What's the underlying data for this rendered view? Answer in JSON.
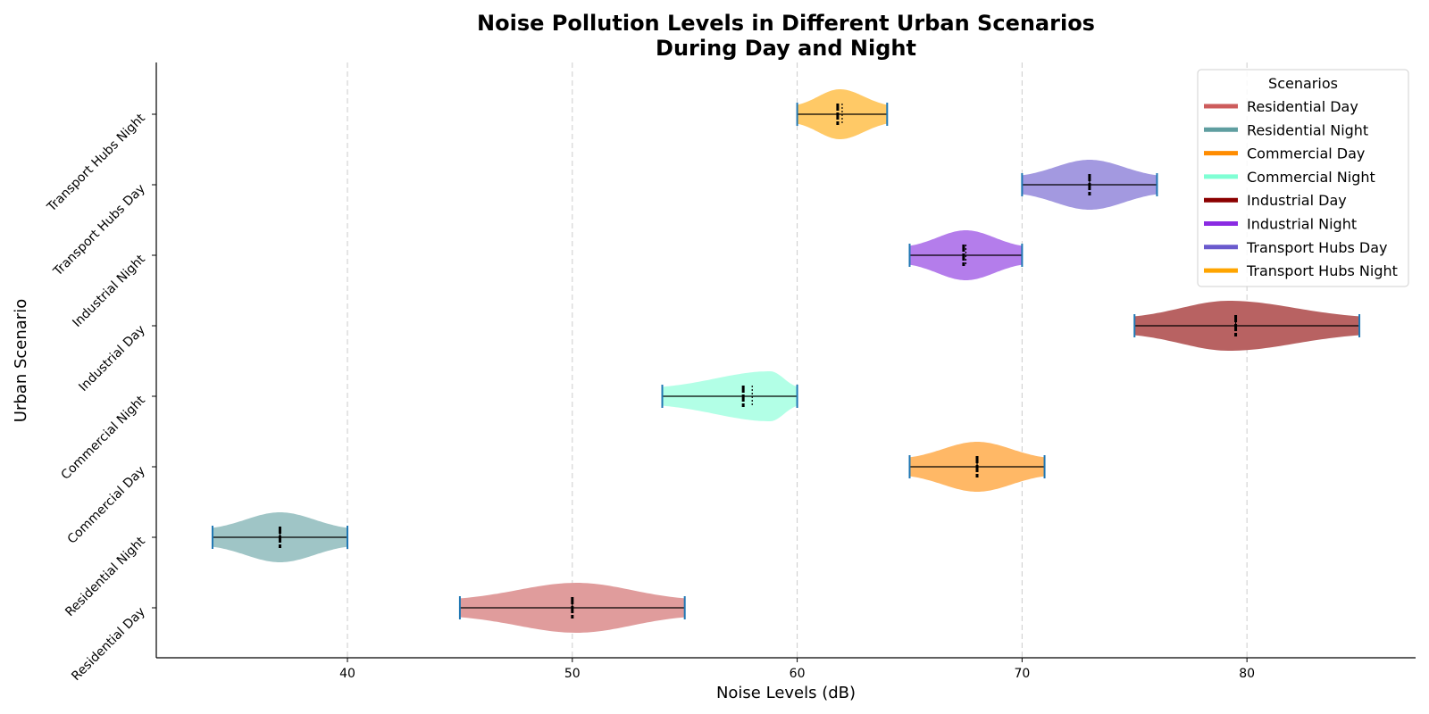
{
  "chart_data": {
    "type": "violin",
    "title": "Noise Pollution Levels in Different Urban Scenarios",
    "subtitle": "During Day and Night",
    "xlabel": "Noise Levels (dB)",
    "ylabel": "Urban Scenario",
    "xlim": [
      31.5,
      87.5
    ],
    "xticks": [
      40,
      50,
      60,
      70,
      80
    ],
    "grid": "vertical dashed",
    "legend_title": "Scenarios",
    "legend_position": "top-right",
    "categories": [
      "Residential Day",
      "Residential Night",
      "Commercial Day",
      "Commercial Night",
      "Industrial Day",
      "Industrial Night",
      "Transport Hubs Day",
      "Transport Hubs Night"
    ],
    "series": [
      {
        "name": "Residential Day",
        "legend_color": "#cd5c5c",
        "fill": "#e09c9c",
        "min": 45,
        "max": 55,
        "median": 50,
        "mean": 50,
        "peak": 50.2
      },
      {
        "name": "Residential Night",
        "legend_color": "#5f9ea0",
        "fill": "#9fc5c6",
        "min": 34,
        "max": 40,
        "median": 37,
        "mean": 37,
        "peak": 37.0
      },
      {
        "name": "Commercial Day",
        "legend_color": "#ff8c00",
        "fill": "#ffb866",
        "min": 65,
        "max": 71,
        "median": 68,
        "mean": 68,
        "peak": 68.0
      },
      {
        "name": "Commercial Night",
        "legend_color": "#7fffd4",
        "fill": "#b2ffe6",
        "min": 54,
        "max": 60,
        "median": 57.6,
        "mean": 58,
        "peak": 58.8
      },
      {
        "name": "Industrial Day",
        "legend_color": "#8b0000",
        "fill": "#b86262",
        "min": 75,
        "max": 85,
        "median": 79.5,
        "mean": 79.5,
        "peak": 79.2
      },
      {
        "name": "Industrial Night",
        "legend_color": "#8a2be2",
        "fill": "#b47deb",
        "min": 65,
        "max": 70,
        "median": 67.4,
        "mean": 67.5,
        "peak": 67.5
      },
      {
        "name": "Transport Hubs Day",
        "legend_color": "#6a5acd",
        "fill": "#a399e0",
        "min": 70,
        "max": 76,
        "median": 73,
        "mean": 73,
        "peak": 73.0
      },
      {
        "name": "Transport Hubs Night",
        "legend_color": "#ffa500",
        "fill": "#ffc966",
        "min": 60,
        "max": 64,
        "median": 61.8,
        "mean": 62,
        "peak": 61.9
      }
    ]
  }
}
